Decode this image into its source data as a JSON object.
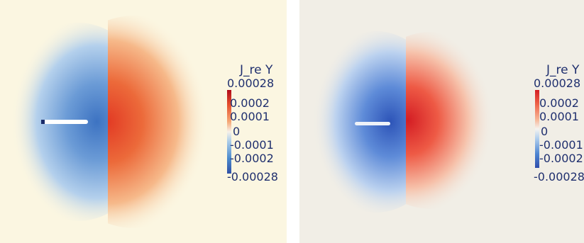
{
  "colors": {
    "left_background": "#fbf6e1",
    "right_background": "#f1eee6",
    "label_text": "#1f2f6e",
    "negative_blue": "#2f4fa5",
    "positive_red": "#d41e24"
  },
  "panels": [
    {
      "colorbar": {
        "title": "J_re Y",
        "ticks": [
          "0.00028",
          "0.0002",
          "0.0001",
          "0",
          "-0.0001",
          "-0.0002",
          "-0.00028"
        ],
        "range": [
          -0.00028,
          0.00028
        ]
      }
    },
    {
      "colorbar": {
        "title": "J_re Y",
        "ticks": [
          "0.00028",
          "0.0002",
          "0.0001",
          "0",
          "-0.0001",
          "-0.0002",
          "-0.00028"
        ],
        "range": [
          -0.00028,
          0.00028
        ]
      }
    }
  ]
}
